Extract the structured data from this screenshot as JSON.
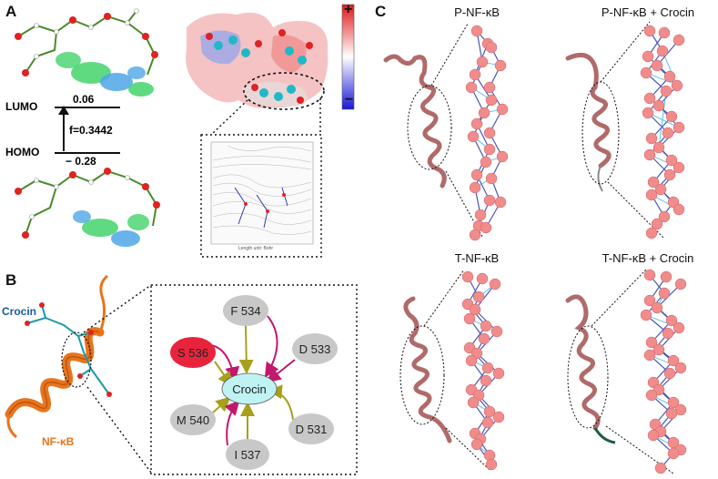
{
  "panels": {
    "a": {
      "letter": "A",
      "lumo_label": "LUMO",
      "homo_label": "HOMO",
      "lumo_value": "0.06",
      "homo_value": "− 0.28",
      "oscillator": "f=0.3442",
      "esp_plus": "+",
      "esp_minus": "−",
      "contour_axis_label": "Length unit: Bohr"
    },
    "b": {
      "letter": "B",
      "crocin_label": "Crocin",
      "protein_label": "NF-κB",
      "center_node": "Crocin",
      "residues": [
        "F 534",
        "D 533",
        "D 531",
        "I 537",
        "M 540",
        "S 536"
      ],
      "colors": {
        "center": "#bff3f3",
        "residue": "#c8c8c8",
        "highlight": "#e8243c",
        "magenta_edge": "#c2186e",
        "olive_edge": "#a8a01a"
      }
    },
    "c": {
      "letter": "C",
      "titles": [
        "P-NF-κB",
        "P-NF-κB + Crocin",
        "T-NF-κB",
        "T-NF-κB + Crocin"
      ]
    }
  }
}
